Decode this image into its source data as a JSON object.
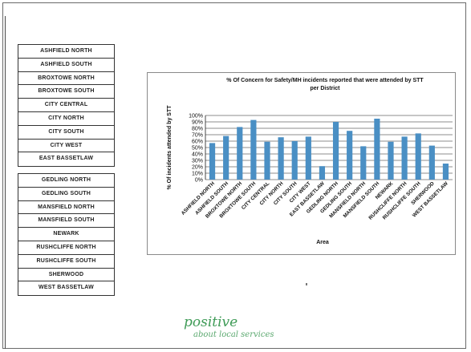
{
  "districts_group_1": [
    "ASHFIELD NORTH",
    "ASHFIELD SOUTH",
    "BROXTOWE NORTH",
    "BROXTOWE SOUTH",
    "CITY CENTRAL",
    "CITY NORTH",
    "CITY SOUTH",
    "CITY WEST",
    "EAST BASSETLAW"
  ],
  "districts_group_2": [
    "GEDLING NORTH",
    "GEDLING SOUTH",
    "MANSFIELD NORTH",
    "MANSFIELD SOUTH",
    "NEWARK",
    "RUSHCLIFFE NORTH",
    "RUSHCLIFFE SOUTH",
    "SHERWOOD",
    "WEST BASSETLAW"
  ],
  "logo": {
    "word": "positive",
    "tagline": "about local services"
  },
  "chart_data": {
    "type": "bar",
    "title_line1": "% Of Concern for Safety/MH incidents reported that were attended by STT",
    "title_line2": "per District",
    "xlabel": "Area",
    "ylabel": "% Of incidents attended by STT",
    "ylim": [
      0,
      100
    ],
    "yticks": [
      "0%",
      "10%",
      "20%",
      "30%",
      "40%",
      "50%",
      "60%",
      "70%",
      "80%",
      "90%",
      "100%"
    ],
    "grid": true,
    "bar_color": "#4a8fc4",
    "categories": [
      "ASHFIELD NORTH",
      "ASHFIELD SOUTH",
      "BROXTOWE NORTH",
      "BROXTOWE SOUTH",
      "CITY CENTRAL",
      "CITY NORTH",
      "CITY SOUTH",
      "CITY WEST",
      "EAST BASSETLAW",
      "GEDLING NORTH",
      "GEDLING SOUTH",
      "MANSFIELD NORTH",
      "MANSFIELD SOUTH",
      "NEWARK",
      "RUSHCLIFFE NORTH",
      "RUSHCLIFFE SOUTH",
      "SHERWOOD",
      "WEST BASSETLAW"
    ],
    "values": [
      57,
      68,
      82,
      93,
      59,
      66,
      60,
      67,
      21,
      90,
      76,
      52,
      95,
      59,
      67,
      72,
      53,
      25
    ]
  }
}
